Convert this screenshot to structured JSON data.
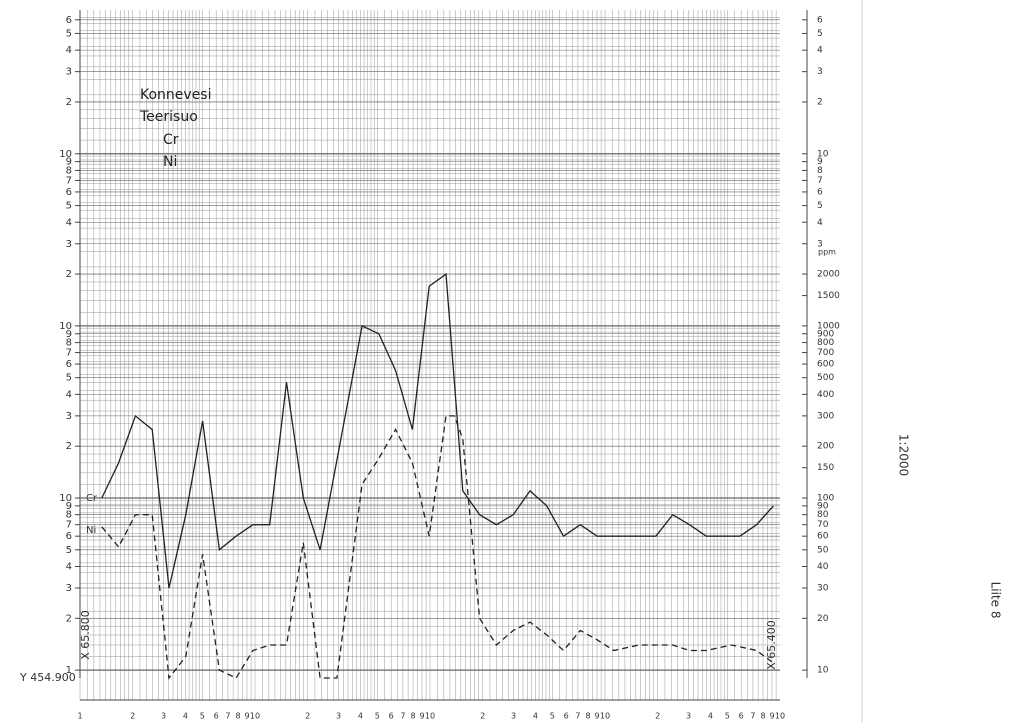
{
  "chart_data": {
    "type": "line",
    "title": "Konnevesi",
    "subtitle": "Teerisuo",
    "ylabel": "ppm",
    "log_y": true,
    "grid": true,
    "xlim": [
      -1.3,
      42
    ],
    "ylim": [
      9,
      64000
    ],
    "yticks": [
      10,
      20,
      30,
      40,
      50,
      60,
      70,
      80,
      90,
      100,
      150,
      200,
      300,
      400,
      500,
      600,
      700,
      800,
      900,
      1000,
      1500,
      2000,
      {
        "value": 3000,
        "label": "3"
      },
      {
        "value": 4000,
        "label": "4"
      },
      {
        "value": 5000,
        "label": "5"
      },
      {
        "value": 6000,
        "label": "6"
      },
      {
        "value": 7000,
        "label": "7"
      },
      {
        "value": 8000,
        "label": "8"
      },
      {
        "value": 9000,
        "label": "9"
      },
      {
        "value": 10000,
        "label": "10"
      },
      {
        "value": 20000,
        "label": "2"
      },
      {
        "value": 30000,
        "label": "3"
      },
      {
        "value": 40000,
        "label": "4"
      },
      {
        "value": 50000,
        "label": "5"
      },
      {
        "value": 60000,
        "label": "6"
      }
    ],
    "y_left_ticks": [
      {
        "value": 10,
        "label": "1"
      },
      {
        "value": 20,
        "label": "2"
      },
      {
        "value": 30,
        "label": "3"
      },
      {
        "value": 40,
        "label": "4"
      },
      {
        "value": 50,
        "label": "5"
      },
      {
        "value": 60,
        "label": "6"
      },
      {
        "value": 70,
        "label": "7"
      },
      {
        "value": 80,
        "label": "8"
      },
      {
        "value": 90,
        "label": "9"
      },
      {
        "value": 100,
        "label": "10"
      },
      {
        "value": 200,
        "label": "2"
      },
      {
        "value": 300,
        "label": "3"
      },
      {
        "value": 400,
        "label": "4"
      },
      {
        "value": 500,
        "label": "5"
      },
      {
        "value": 600,
        "label": "6"
      },
      {
        "value": 700,
        "label": "7"
      },
      {
        "value": 800,
        "label": "8"
      },
      {
        "value": 900,
        "label": "9"
      },
      {
        "value": 1000,
        "label": "10"
      },
      {
        "value": 2000,
        "label": "2"
      },
      {
        "value": 3000,
        "label": "3"
      },
      {
        "value": 4000,
        "label": "4"
      },
      {
        "value": 5000,
        "label": "5"
      },
      {
        "value": 6000,
        "label": "6"
      },
      {
        "value": 7000,
        "label": "7"
      },
      {
        "value": 8000,
        "label": "8"
      },
      {
        "value": 9000,
        "label": "9"
      },
      {
        "value": 10000,
        "label": "10"
      },
      {
        "value": 20000,
        "label": "2"
      },
      {
        "value": 30000,
        "label": "3"
      },
      {
        "value": 40000,
        "label": "4"
      },
      {
        "value": 50000,
        "label": "5"
      },
      {
        "value": 60000,
        "label": "6"
      }
    ],
    "paper_x_labels": [
      "1",
      "2",
      "3",
      "4",
      "5",
      "6",
      "7",
      "8",
      "9",
      "10"
    ],
    "series": [
      {
        "name": "Cr",
        "color": "#222222",
        "style": "solid",
        "x": [
          0,
          1,
          2,
          3,
          4,
          5,
          6,
          7,
          8,
          9,
          10,
          11,
          12,
          13,
          15.5,
          16.5,
          17.5,
          18.5,
          19.5,
          20.5,
          21.5,
          22.5,
          23.5,
          24.5,
          25.5,
          26.5,
          27.5,
          28.5,
          29.5,
          33,
          34,
          35,
          36,
          38,
          39,
          40
        ],
        "values": [
          100,
          160,
          300,
          250,
          30,
          80,
          280,
          50,
          60,
          70,
          70,
          470,
          100,
          50,
          1000,
          900,
          550,
          250,
          1700,
          2000,
          110,
          80,
          70,
          80,
          110,
          90,
          60,
          70,
          60,
          60,
          80,
          70,
          60,
          60,
          70,
          90
        ]
      },
      {
        "name": "Ni",
        "color": "#222222",
        "style": "dashed",
        "x": [
          0,
          1,
          2,
          3,
          4,
          5,
          6,
          7,
          8,
          9,
          10,
          11,
          12,
          13,
          14,
          15.5,
          16.5,
          17.5,
          18.5,
          19.5,
          20.5,
          21,
          21.5,
          22.5,
          23.5,
          24.5,
          25.5,
          26.5,
          27.5,
          28.5,
          29.5,
          30.5,
          32,
          34,
          35,
          36,
          37.5,
          39,
          40
        ],
        "values": [
          68,
          52,
          80,
          80,
          9,
          12,
          47,
          10,
          9,
          13,
          14,
          14,
          55,
          9,
          9,
          120,
          170,
          250,
          160,
          60,
          300,
          300,
          220,
          20,
          14,
          17,
          19,
          16,
          13,
          17,
          15,
          13,
          14,
          14,
          13,
          13,
          14,
          13,
          11
        ]
      }
    ],
    "annotations": [
      "X 65.800",
      "X 65.400",
      "Y 454.900",
      "1:2000",
      "Liite 8"
    ]
  }
}
